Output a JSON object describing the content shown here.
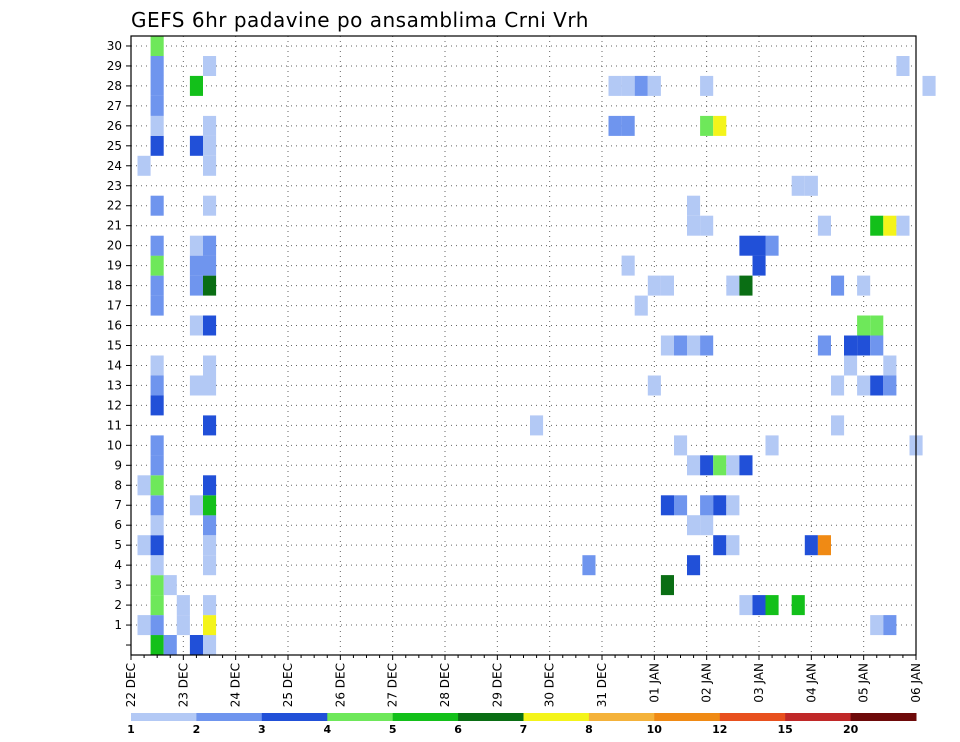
{
  "chart_data": {
    "type": "heatmap",
    "title": "GEFS 6hr padavine po ansamblima Crni Vrh",
    "xlabel": "",
    "ylabel": "",
    "y_members": [
      1,
      2,
      3,
      4,
      5,
      6,
      7,
      8,
      9,
      10,
      11,
      12,
      13,
      14,
      15,
      16,
      17,
      18,
      19,
      20,
      21,
      22,
      23,
      24,
      25,
      26,
      27,
      28,
      29,
      30
    ],
    "x_ticks": [
      "22 DEC",
      "23 DEC",
      "24 DEC",
      "25 DEC",
      "26 DEC",
      "27 DEC",
      "28 DEC",
      "29 DEC",
      "30 DEC",
      "31 DEC",
      "01 JAN",
      "02 JAN",
      "03 JAN",
      "04 JAN",
      "05 JAN",
      "06 JAN"
    ],
    "x_range_days": [
      0,
      15
    ],
    "grid": true,
    "legend": "bottom colorbar",
    "colorbar": {
      "labels": [
        "1",
        "2",
        "3",
        "4",
        "5",
        "6",
        "7",
        "8",
        "10",
        "12",
        "15",
        "20"
      ],
      "colors": [
        "#b3c9f5",
        "#6f95ee",
        "#2150d8",
        "#6ee85a",
        "#13c01a",
        "#0a6e14",
        "#f4f41a",
        "#f4b23a",
        "#f08a14",
        "#e8501e",
        "#c02828",
        "#6e0a0a"
      ]
    },
    "cells": [
      [
        0.25,
        1,
        1
      ],
      [
        0.25,
        5,
        1
      ],
      [
        0.25,
        8,
        1
      ],
      [
        0.25,
        24,
        1
      ],
      [
        0.5,
        0,
        5
      ],
      [
        0.5,
        1,
        2
      ],
      [
        0.5,
        2,
        4
      ],
      [
        0.5,
        3,
        4
      ],
      [
        0.5,
        4,
        1
      ],
      [
        0.5,
        5,
        3
      ],
      [
        0.5,
        6,
        1
      ],
      [
        0.5,
        7,
        2
      ],
      [
        0.5,
        8,
        4
      ],
      [
        0.5,
        9,
        2
      ],
      [
        0.5,
        10,
        2
      ],
      [
        0.5,
        12,
        3
      ],
      [
        0.5,
        13,
        2
      ],
      [
        0.5,
        14,
        1
      ],
      [
        0.5,
        17,
        2
      ],
      [
        0.5,
        18,
        2
      ],
      [
        0.5,
        19,
        4
      ],
      [
        0.5,
        20,
        2
      ],
      [
        0.5,
        22,
        2
      ],
      [
        0.5,
        25,
        3
      ],
      [
        0.5,
        26,
        1
      ],
      [
        0.5,
        27,
        2
      ],
      [
        0.5,
        28,
        2
      ],
      [
        0.5,
        29,
        2
      ],
      [
        0.5,
        30,
        4
      ],
      [
        0.75,
        0,
        2
      ],
      [
        0.75,
        3,
        1
      ],
      [
        1.0,
        1,
        1
      ],
      [
        1.0,
        2,
        1
      ],
      [
        1.25,
        0,
        3
      ],
      [
        1.25,
        7,
        1
      ],
      [
        1.25,
        13,
        1
      ],
      [
        1.25,
        16,
        1
      ],
      [
        1.25,
        18,
        2
      ],
      [
        1.25,
        19,
        2
      ],
      [
        1.25,
        20,
        1
      ],
      [
        1.25,
        25,
        3
      ],
      [
        1.25,
        28,
        5
      ],
      [
        1.5,
        0,
        1
      ],
      [
        1.5,
        1,
        7
      ],
      [
        1.5,
        2,
        1
      ],
      [
        1.5,
        4,
        1
      ],
      [
        1.5,
        5,
        1
      ],
      [
        1.5,
        6,
        2
      ],
      [
        1.5,
        7,
        5
      ],
      [
        1.5,
        8,
        3
      ],
      [
        1.5,
        11,
        3
      ],
      [
        1.5,
        13,
        1
      ],
      [
        1.5,
        14,
        1
      ],
      [
        1.5,
        16,
        3
      ],
      [
        1.5,
        18,
        6
      ],
      [
        1.5,
        19,
        2
      ],
      [
        1.5,
        20,
        2
      ],
      [
        1.5,
        22,
        1
      ],
      [
        1.5,
        24,
        1
      ],
      [
        1.5,
        25,
        1
      ],
      [
        1.5,
        26,
        1
      ],
      [
        1.5,
        29,
        1
      ],
      [
        7.75,
        11,
        1
      ],
      [
        8.75,
        4,
        2
      ],
      [
        9.25,
        26,
        2
      ],
      [
        9.5,
        26,
        2
      ],
      [
        9.25,
        28,
        1
      ],
      [
        9.5,
        28,
        1
      ],
      [
        9.75,
        28,
        2
      ],
      [
        10.0,
        28,
        1
      ],
      [
        9.5,
        19,
        1
      ],
      [
        9.75,
        17,
        1
      ],
      [
        10.0,
        13,
        1
      ],
      [
        10.0,
        18,
        1
      ],
      [
        10.25,
        18,
        1
      ],
      [
        10.25,
        3,
        6
      ],
      [
        10.25,
        7,
        3
      ],
      [
        10.5,
        7,
        2
      ],
      [
        10.25,
        15,
        1
      ],
      [
        10.5,
        15,
        2
      ],
      [
        10.75,
        15,
        1
      ],
      [
        11.0,
        15,
        2
      ],
      [
        10.5,
        10,
        1
      ],
      [
        10.75,
        4,
        3
      ],
      [
        10.75,
        6,
        1
      ],
      [
        11.0,
        6,
        1
      ],
      [
        10.75,
        9,
        1
      ],
      [
        11.0,
        9,
        3
      ],
      [
        11.25,
        9,
        4
      ],
      [
        11.5,
        9,
        1
      ],
      [
        11.75,
        9,
        3
      ],
      [
        10.75,
        21,
        1
      ],
      [
        11.0,
        21,
        1
      ],
      [
        10.75,
        22,
        1
      ],
      [
        11.0,
        7,
        2
      ],
      [
        11.25,
        7,
        3
      ],
      [
        11.5,
        7,
        1
      ],
      [
        11.25,
        5,
        3
      ],
      [
        11.5,
        5,
        1
      ],
      [
        11.0,
        26,
        4
      ],
      [
        11.25,
        26,
        7
      ],
      [
        11.0,
        28,
        1
      ],
      [
        11.5,
        18,
        1
      ],
      [
        11.75,
        18,
        6
      ],
      [
        11.75,
        20,
        3
      ],
      [
        12.0,
        20,
        3
      ],
      [
        12.25,
        20,
        2
      ],
      [
        12.0,
        19,
        3
      ],
      [
        11.75,
        2,
        1
      ],
      [
        12.0,
        2,
        3
      ],
      [
        12.25,
        2,
        5
      ],
      [
        12.75,
        2,
        5
      ],
      [
        12.25,
        10,
        1
      ],
      [
        12.75,
        23,
        1
      ],
      [
        13.0,
        23,
        1
      ],
      [
        13.0,
        5,
        3
      ],
      [
        13.25,
        5,
        9
      ],
      [
        13.25,
        15,
        2
      ],
      [
        13.25,
        21,
        1
      ],
      [
        13.5,
        11,
        1
      ],
      [
        13.5,
        13,
        1
      ],
      [
        13.5,
        18,
        2
      ],
      [
        13.75,
        14,
        1
      ],
      [
        14.0,
        13,
        1
      ],
      [
        14.0,
        18,
        1
      ],
      [
        13.75,
        15,
        3
      ],
      [
        14.0,
        15,
        3
      ],
      [
        14.25,
        15,
        2
      ],
      [
        14.0,
        16,
        4
      ],
      [
        14.25,
        16,
        4
      ],
      [
        14.25,
        13,
        3
      ],
      [
        14.5,
        13,
        2
      ],
      [
        14.5,
        14,
        1
      ],
      [
        14.25,
        1,
        1
      ],
      [
        14.5,
        1,
        2
      ],
      [
        14.25,
        21,
        5
      ],
      [
        14.5,
        21,
        7
      ],
      [
        14.75,
        21,
        1
      ],
      [
        15.0,
        10,
        1
      ],
      [
        14.75,
        29,
        1
      ],
      [
        15.25,
        28,
        1
      ]
    ]
  }
}
